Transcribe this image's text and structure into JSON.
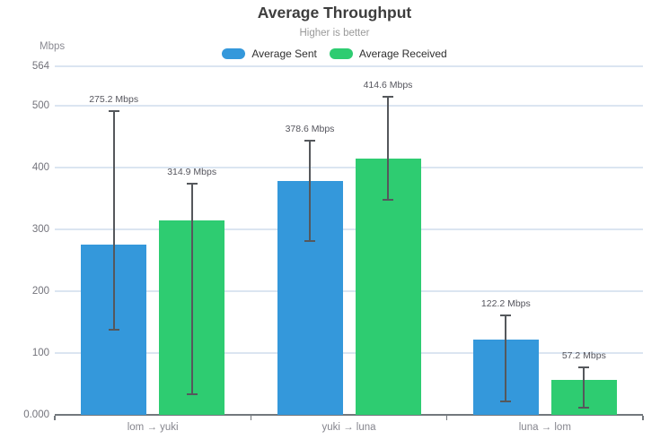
{
  "chart_data": {
    "type": "bar",
    "title": "Average Throughput",
    "subtitle": "Higher is better",
    "unit_label": "Mbps",
    "categories": [
      "lom → yuki",
      "yuki → luna",
      "luna → lom"
    ],
    "series": [
      {
        "name": "Average Sent",
        "color": "#3498db",
        "values": [
          275.2,
          378.6,
          122.2
        ],
        "value_labels": [
          "275.2 Mbps",
          "378.6 Mbps",
          "122.2 Mbps"
        ],
        "error_min": [
          138,
          281,
          22
        ],
        "error_max": [
          492,
          444,
          161
        ]
      },
      {
        "name": "Average Received",
        "color": "#2ecc71",
        "values": [
          314.9,
          414.6,
          57.2
        ],
        "value_labels": [
          "314.9 Mbps",
          "414.6 Mbps",
          "57.2 Mbps"
        ],
        "error_min": [
          33,
          348,
          12
        ],
        "error_max": [
          374,
          515,
          77
        ]
      }
    ],
    "y_axis": {
      "ticks": [
        {
          "label": "564",
          "value": 564
        },
        {
          "label": "500",
          "value": 500
        },
        {
          "label": "400",
          "value": 400
        },
        {
          "label": "300",
          "value": 300
        },
        {
          "label": "200",
          "value": 200
        },
        {
          "label": "100",
          "value": 100
        },
        {
          "label": "0.000",
          "value": 0
        }
      ],
      "range": [
        0,
        564
      ]
    },
    "grid": true,
    "legend_position": "top",
    "colors": {
      "grid": "#dbe5f1",
      "axis": "#73787d",
      "error_bar": "#55585c",
      "title": "#3d3d3d",
      "subtitle": "#9a9a9a",
      "tick_label": "#73737b",
      "value_label": "#55555d"
    }
  }
}
